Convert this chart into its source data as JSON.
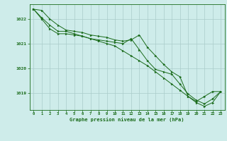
{
  "title": "Graphe pression niveau de la mer (hPa)",
  "bg_color": "#ceecea",
  "grid_color": "#aaccca",
  "line_color": "#1a6b1a",
  "marker_color": "#1a6b1a",
  "xlim": [
    -0.5,
    23.5
  ],
  "ylim": [
    1018.3,
    1022.6
  ],
  "yticks": [
    1019,
    1020,
    1021,
    1022
  ],
  "xticks": [
    0,
    1,
    2,
    3,
    4,
    5,
    6,
    7,
    8,
    9,
    10,
    11,
    12,
    13,
    14,
    15,
    16,
    17,
    18,
    19,
    20,
    21,
    22,
    23
  ],
  "series1": [
    1022.4,
    1022.35,
    1022.0,
    1021.75,
    1021.55,
    1021.5,
    1021.45,
    1021.35,
    1021.3,
    1021.25,
    1021.15,
    1021.1,
    1021.15,
    1021.35,
    1020.85,
    1020.5,
    1020.15,
    1019.85,
    1019.65,
    1018.85,
    1018.65,
    1018.85,
    1019.05,
    1019.05
  ],
  "series2": [
    1022.4,
    1022.05,
    1021.75,
    1021.5,
    1021.5,
    1021.4,
    1021.3,
    1021.2,
    1021.15,
    1021.1,
    1021.05,
    1021.0,
    1021.2,
    1020.75,
    1020.3,
    1019.95,
    1019.85,
    1019.75,
    1019.35,
    1018.95,
    1018.7,
    1018.55,
    1018.75,
    1019.05
  ],
  "series3": [
    1022.4,
    1022.0,
    1021.6,
    1021.4,
    1021.4,
    1021.35,
    1021.3,
    1021.2,
    1021.1,
    1021.0,
    1020.9,
    1020.7,
    1020.5,
    1020.3,
    1020.1,
    1019.85,
    1019.6,
    1019.35,
    1019.1,
    1018.85,
    1018.6,
    1018.45,
    1018.6,
    1019.05
  ]
}
